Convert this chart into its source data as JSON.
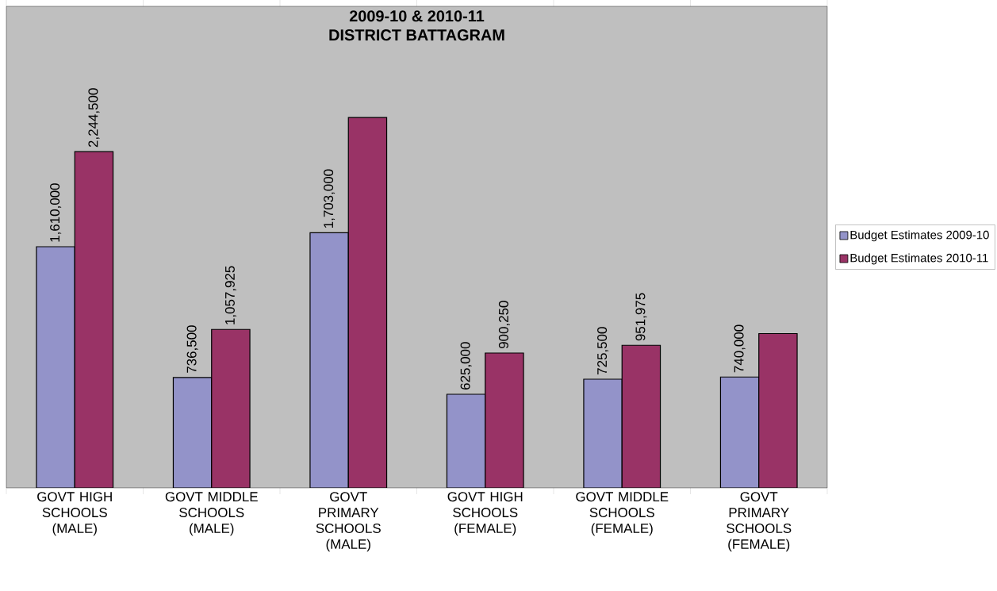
{
  "chart_data": {
    "type": "bar",
    "title": "2009-10 & 2010-11",
    "subtitle": "DISTRICT BATTAGRAM",
    "categories": [
      "GOVT HIGH SCHOOLS (MALE)",
      "GOVT MIDDLE SCHOOLS (MALE)",
      "GOVT PRIMARY SCHOOLS (MALE)",
      "GOVT HIGH SCHOOLS (FEMALE)",
      "GOVT MIDDLE SCHOOLS (FEMALE)",
      "GOVT PRIMARY SCHOOLS (FEMALE)"
    ],
    "series": [
      {
        "name": "Budget Estimates 2009-10",
        "color": "#9393c9",
        "values": [
          1610000,
          736500,
          1703000,
          625000,
          725500,
          740000
        ],
        "value_labels": [
          "1,610,000",
          "736,500",
          "1,703,000",
          "625,000",
          "725,500",
          "740,000"
        ]
      },
      {
        "name": "Budget Estimates 2010-11",
        "color": "#993366",
        "values": [
          2244500,
          1057925,
          2473000,
          900250,
          951975,
          1030000
        ],
        "value_labels": [
          "2,244,500",
          "1,057,925",
          null,
          "900,250",
          "951,975",
          null
        ]
      }
    ],
    "legend": "right"
  }
}
